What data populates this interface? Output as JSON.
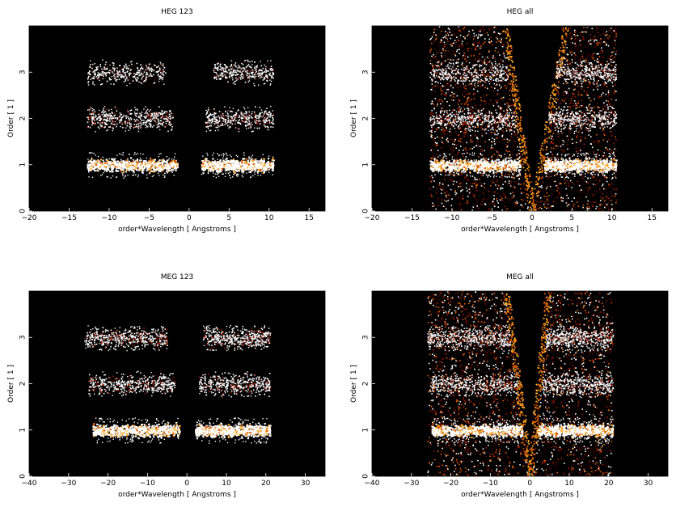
{
  "chart_data": [
    {
      "type": "heatmap",
      "title": "HEG 123",
      "xlabel": "order*Wavelength [ Angstroms ]",
      "ylabel": "Order [ 1 ]",
      "xlim": [
        -20,
        17
      ],
      "ylim": [
        0,
        4
      ],
      "xticks": [
        -20,
        -15,
        -10,
        -5,
        0,
        5,
        10,
        15
      ],
      "yticks": [
        0,
        1,
        2,
        3
      ],
      "background": "#000000",
      "colormap": [
        "#000000",
        "#4a0000",
        "#a01800",
        "#e06000",
        "#ffb030",
        "#ffffff"
      ],
      "bands": [
        {
          "order": 1,
          "x_range": [
            -12.8,
            -1.5
          ],
          "intensity": 1.0
        },
        {
          "order": 1,
          "x_range": [
            1.5,
            10.5
          ],
          "intensity": 1.0
        },
        {
          "order": 2,
          "x_range": [
            -12.8,
            -2.0
          ],
          "intensity": 0.45
        },
        {
          "order": 2,
          "x_range": [
            2.0,
            10.5
          ],
          "intensity": 0.35
        },
        {
          "order": 3,
          "x_range": [
            -12.8,
            -3.0
          ],
          "intensity": 0.3
        },
        {
          "order": 3,
          "x_range": [
            3.0,
            10.5
          ],
          "intensity": 0.3
        }
      ],
      "cones": false
    },
    {
      "type": "heatmap",
      "title": "HEG all",
      "xlabel": "order*Wavelength [ Angstroms ]",
      "ylabel": "Order [ 1 ]",
      "xlim": [
        -20,
        17
      ],
      "ylim": [
        0,
        4
      ],
      "xticks": [
        -20,
        -15,
        -10,
        -5,
        0,
        5,
        10,
        15
      ],
      "yticks": [
        0,
        1,
        2,
        3
      ],
      "background": "#000000",
      "colormap": [
        "#000000",
        "#4a0000",
        "#a01800",
        "#e06000",
        "#ffb030",
        "#ffffff"
      ],
      "bands": [
        {
          "order": 1,
          "x_range": [
            -12.8,
            -1.5
          ],
          "intensity": 1.0
        },
        {
          "order": 1,
          "x_range": [
            1.5,
            10.5
          ],
          "intensity": 1.0
        },
        {
          "order": 2,
          "x_range": [
            -12.8,
            -2.0
          ],
          "intensity": 0.45
        },
        {
          "order": 2,
          "x_range": [
            2.0,
            10.5
          ],
          "intensity": 0.35
        },
        {
          "order": 3,
          "x_range": [
            -12.8,
            -3.0
          ],
          "intensity": 0.3
        },
        {
          "order": 3,
          "x_range": [
            3.0,
            10.5
          ],
          "intensity": 0.3
        }
      ],
      "cones": true,
      "cone_edges": {
        "left_outer": -12.8,
        "right_outer": 10.5,
        "top_left": -3.4,
        "top_right": 4.2
      }
    },
    {
      "type": "heatmap",
      "title": "MEG 123",
      "xlabel": "order*Wavelength [ Angstroms ]",
      "ylabel": "Order [ 1 ]",
      "xlim": [
        -40,
        35
      ],
      "ylim": [
        0,
        4
      ],
      "xticks": [
        -40,
        -30,
        -20,
        -10,
        0,
        10,
        20,
        30
      ],
      "yticks": [
        0,
        1,
        2,
        3
      ],
      "background": "#000000",
      "colormap": [
        "#000000",
        "#4a0000",
        "#a01800",
        "#e06000",
        "#ffb030",
        "#ffffff"
      ],
      "bands": [
        {
          "order": 1,
          "x_range": [
            -24.0,
            -2.0
          ],
          "intensity": 1.0
        },
        {
          "order": 1,
          "x_range": [
            2.0,
            21.0
          ],
          "intensity": 1.0
        },
        {
          "order": 2,
          "x_range": [
            -25.0,
            -3.0
          ],
          "intensity": 0.45
        },
        {
          "order": 2,
          "x_range": [
            3.0,
            21.0
          ],
          "intensity": 0.4
        },
        {
          "order": 3,
          "x_range": [
            -26.0,
            -5.0
          ],
          "intensity": 0.5
        },
        {
          "order": 3,
          "x_range": [
            4.0,
            21.0
          ],
          "intensity": 0.45
        }
      ],
      "cones": false
    },
    {
      "type": "heatmap",
      "title": "MEG all",
      "xlabel": "order*Wavelength [ Angstroms ]",
      "ylabel": "Order [ 1 ]",
      "xlim": [
        -40,
        35
      ],
      "ylim": [
        0,
        4
      ],
      "xticks": [
        -40,
        -30,
        -20,
        -10,
        0,
        10,
        20,
        30
      ],
      "yticks": [
        0,
        1,
        2,
        3
      ],
      "background": "#000000",
      "colormap": [
        "#000000",
        "#4a0000",
        "#a01800",
        "#e06000",
        "#ffb030",
        "#ffffff"
      ],
      "bands": [
        {
          "order": 1,
          "x_range": [
            -25.0,
            -2.0
          ],
          "intensity": 1.0
        },
        {
          "order": 1,
          "x_range": [
            2.0,
            21.0
          ],
          "intensity": 1.0
        },
        {
          "order": 2,
          "x_range": [
            -25.0,
            -3.0
          ],
          "intensity": 0.45
        },
        {
          "order": 2,
          "x_range": [
            3.0,
            21.0
          ],
          "intensity": 0.4
        },
        {
          "order": 3,
          "x_range": [
            -26.0,
            -5.0
          ],
          "intensity": 0.5
        },
        {
          "order": 3,
          "x_range": [
            4.0,
            21.0
          ],
          "intensity": 0.45
        }
      ],
      "cones": true,
      "cone_edges": {
        "left_outer": -26.0,
        "right_outer": 21.0,
        "top_left": -6.0,
        "top_right": 4.5
      }
    }
  ]
}
